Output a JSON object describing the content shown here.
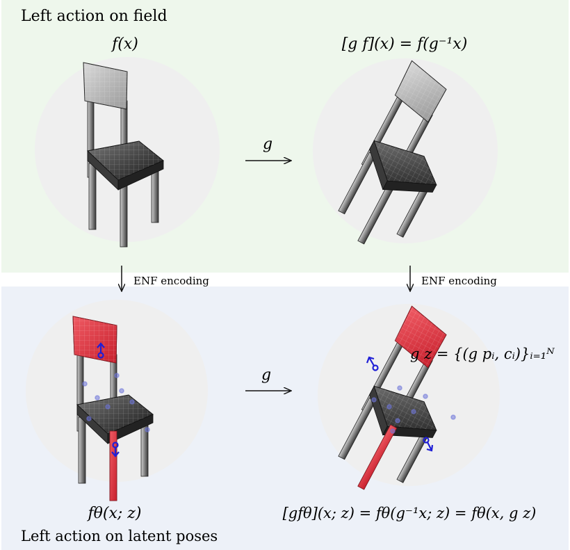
{
  "top_panel": {
    "title": "Left action on field",
    "left_label": "f(x)",
    "right_label": "[g f](x) = f(g⁻¹x)",
    "arrow_label": "g"
  },
  "middle": {
    "left_arrow_label": "ENF encoding",
    "right_arrow_label": "ENF encoding"
  },
  "bottom_panel": {
    "title": "Left action on latent poses",
    "left_label": "fθ(x; z)",
    "right_label": "[gfθ](x; z) = fθ(g⁻¹x; z) = fθ(x, g z)",
    "arrow_label": "g",
    "latent_label": "g z = {(g pᵢ, cᵢ)}ᵢ₌₁ᴺ"
  },
  "colors": {
    "top_bg": "#eef7ec",
    "bottom_bg": "#edf1f8",
    "circle": "#efefef",
    "highlight_red": "#e23a45",
    "pose_blue": "#1f1fd6"
  }
}
